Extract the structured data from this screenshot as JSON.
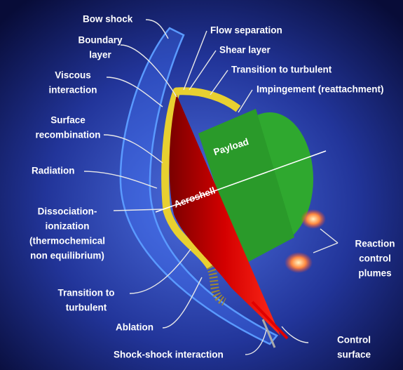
{
  "labels": [
    [
      "Bow shock"
    ],
    [
      "Boundary",
      "layer"
    ],
    [
      "Flow separation"
    ],
    [
      "Shear layer"
    ],
    [
      "Transition to turbulent"
    ],
    [
      "Impingement (reattachment)"
    ],
    [
      "Viscous",
      "interaction"
    ],
    [
      "Surface",
      "recombination"
    ],
    [
      "Payload"
    ],
    [
      "Radiation"
    ],
    [
      "Aeroshell"
    ],
    [
      "Dissociation-",
      "ionization",
      "(thermochemical",
      "non equilibrium)"
    ],
    [
      "Reaction",
      "control",
      "plumes"
    ],
    [
      "Transition to",
      "turbulent"
    ],
    [
      "Ablation"
    ],
    [
      "Shock-shock interaction"
    ],
    [
      "Control",
      "surface"
    ]
  ]
}
